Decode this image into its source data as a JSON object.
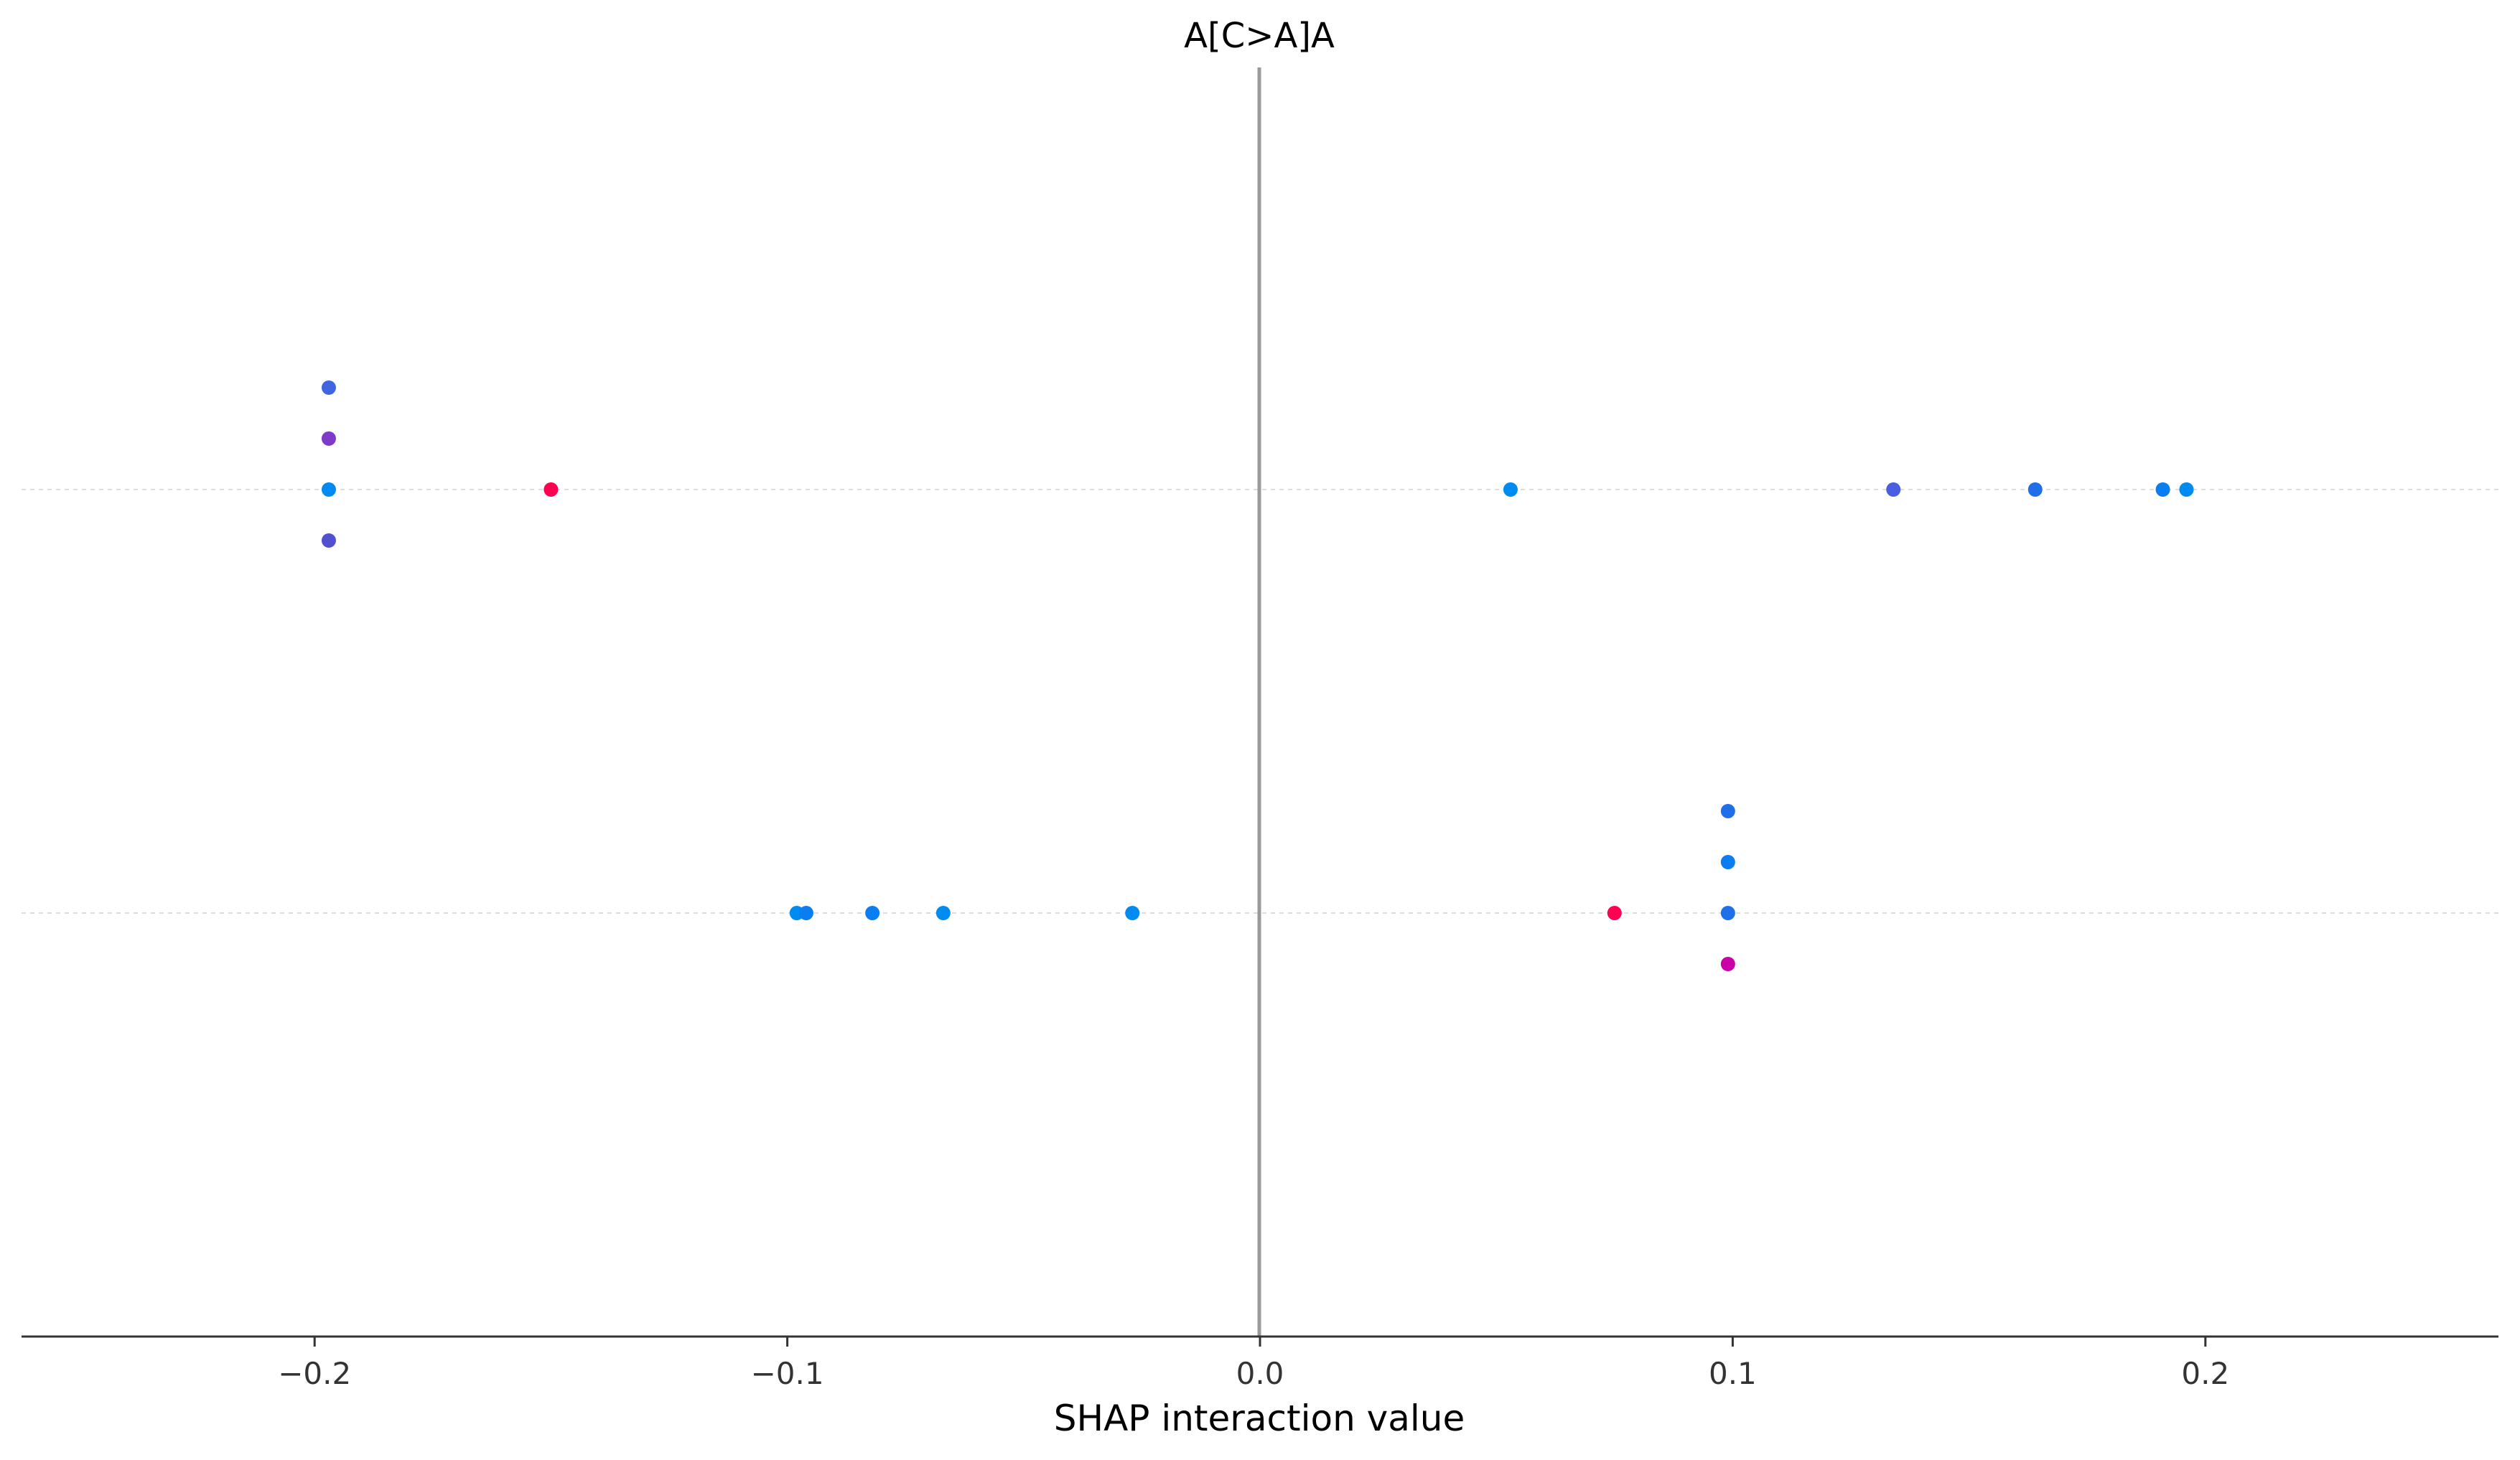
{
  "chart_data": {
    "type": "scatter",
    "title": "A[C>A]A",
    "xlabel": "SHAP interaction value",
    "ylabel": "",
    "xlim": [
      -0.262,
      0.262
    ],
    "xticks": [
      -0.2,
      -0.1,
      0.0,
      0.1,
      0.2
    ],
    "xtick_labels": [
      "−0.2",
      "−0.1",
      "0.0",
      "0.1",
      "0.2"
    ],
    "grid": false,
    "legend": "none",
    "zero_line": {
      "x": 0.0,
      "color": "#999999"
    },
    "rows": [
      {
        "points": [
          {
            "x": -0.197,
            "offset": 2,
            "color": "#3f66e0"
          },
          {
            "x": -0.197,
            "offset": 1,
            "color": "#7e3ac8"
          },
          {
            "x": -0.197,
            "offset": 0,
            "color": "#008bf0"
          },
          {
            "x": -0.197,
            "offset": -1,
            "color": "#5050d0"
          },
          {
            "x": -0.15,
            "offset": 0,
            "color": "#ff0052"
          },
          {
            "x": 0.053,
            "offset": 0,
            "color": "#008bf0"
          },
          {
            "x": 0.134,
            "offset": 0,
            "color": "#4a5ee0"
          },
          {
            "x": 0.164,
            "offset": 0,
            "color": "#1e6fe8"
          },
          {
            "x": 0.191,
            "offset": 0,
            "color": "#0a7ef0"
          },
          {
            "x": 0.196,
            "offset": 0,
            "color": "#008bf0"
          }
        ]
      },
      {
        "points": [
          {
            "x": -0.098,
            "offset": 0,
            "color": "#008bf0"
          },
          {
            "x": -0.096,
            "offset": 0,
            "color": "#0a7ef0"
          },
          {
            "x": -0.082,
            "offset": 0,
            "color": "#0a7ef0"
          },
          {
            "x": -0.067,
            "offset": 0,
            "color": "#008bf0"
          },
          {
            "x": -0.027,
            "offset": 0,
            "color": "#008bf0"
          },
          {
            "x": 0.075,
            "offset": 0,
            "color": "#ff0052"
          },
          {
            "x": 0.099,
            "offset": 2,
            "color": "#1e6fe8"
          },
          {
            "x": 0.099,
            "offset": 1,
            "color": "#0a7ef0"
          },
          {
            "x": 0.099,
            "offset": 0,
            "color": "#1e6fe8"
          },
          {
            "x": 0.099,
            "offset": -1,
            "color": "#cc00a8"
          }
        ]
      }
    ]
  }
}
